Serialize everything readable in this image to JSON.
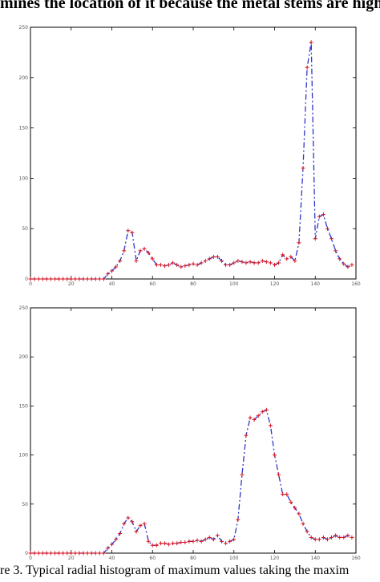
{
  "header": {
    "text": "mines the location of it because the metal stems are highly"
  },
  "caption": {
    "text": "re 3.   Typical radial histogram of maximum values taking the maxim"
  },
  "colors": {
    "dashed": "#2e36c9",
    "markers": "#d8151f",
    "axes": "#000000"
  },
  "chart_data": [
    {
      "type": "line",
      "title": "",
      "xlabel": "",
      "ylabel": "",
      "xlim": [
        0,
        160
      ],
      "ylim": [
        0,
        250
      ],
      "x_ticks": [
        "0",
        "20",
        "40",
        "60",
        "80",
        "100",
        "120",
        "140",
        "160"
      ],
      "y_ticks": [
        "0",
        "50",
        "100",
        "150",
        "200",
        "250"
      ],
      "x_tick_values": [
        0,
        20,
        40,
        60,
        80,
        100,
        120,
        140,
        160
      ],
      "y_tick_values": [
        0,
        50,
        100,
        150,
        200,
        250
      ],
      "grid": false,
      "series": [
        {
          "style": "blue-dash-dot line with red plus markers",
          "x": [
            0,
            2,
            4,
            6,
            8,
            10,
            12,
            14,
            16,
            18,
            20,
            22,
            24,
            26,
            28,
            30,
            32,
            34,
            36,
            38,
            40,
            42,
            44,
            46,
            48,
            50,
            52,
            54,
            56,
            58,
            60,
            62,
            64,
            66,
            68,
            70,
            72,
            74,
            76,
            78,
            80,
            82,
            84,
            86,
            88,
            90,
            92,
            94,
            96,
            98,
            100,
            102,
            104,
            106,
            108,
            110,
            112,
            114,
            116,
            118,
            120,
            122,
            124,
            126,
            128,
            130,
            132,
            134,
            136,
            138,
            140,
            142,
            144,
            146,
            148,
            150,
            152,
            154,
            156,
            158
          ],
          "y": [
            0,
            0,
            0,
            0,
            0,
            0,
            0,
            0,
            0,
            0,
            0,
            0,
            0,
            0,
            0,
            0,
            0,
            0,
            0,
            5,
            8,
            12,
            18,
            28,
            48,
            46,
            18,
            28,
            30,
            26,
            20,
            14,
            14,
            13,
            14,
            16,
            14,
            12,
            13,
            14,
            15,
            14,
            16,
            18,
            20,
            22,
            22,
            18,
            14,
            14,
            16,
            18,
            17,
            16,
            17,
            16,
            16,
            18,
            17,
            16,
            14,
            16,
            24,
            20,
            22,
            18,
            36,
            110,
            210,
            235,
            40,
            62,
            64,
            50,
            40,
            28,
            20,
            15,
            12,
            14
          ]
        }
      ]
    },
    {
      "type": "line",
      "title": "",
      "xlabel": "",
      "ylabel": "",
      "xlim": [
        0,
        160
      ],
      "ylim": [
        0,
        250
      ],
      "x_ticks": [
        "0",
        "20",
        "40",
        "60",
        "80",
        "100",
        "120",
        "140",
        "160"
      ],
      "y_ticks": [
        "0",
        "50",
        "100",
        "150",
        "200",
        "250"
      ],
      "x_tick_values": [
        0,
        20,
        40,
        60,
        80,
        100,
        120,
        140,
        160
      ],
      "y_tick_values": [
        0,
        50,
        100,
        150,
        200,
        250
      ],
      "grid": false,
      "series": [
        {
          "style": "blue-dash-dot line with red plus markers",
          "x": [
            0,
            2,
            4,
            6,
            8,
            10,
            12,
            14,
            16,
            18,
            20,
            22,
            24,
            26,
            28,
            30,
            32,
            34,
            36,
            38,
            40,
            42,
            44,
            46,
            48,
            50,
            52,
            54,
            56,
            58,
            60,
            62,
            64,
            66,
            68,
            70,
            72,
            74,
            76,
            78,
            80,
            82,
            84,
            86,
            88,
            90,
            92,
            94,
            96,
            98,
            100,
            102,
            104,
            106,
            108,
            110,
            112,
            114,
            116,
            118,
            120,
            122,
            124,
            126,
            128,
            130,
            132,
            134,
            136,
            138,
            140,
            142,
            144,
            146,
            148,
            150,
            152,
            154,
            156,
            158
          ],
          "y": [
            0,
            0,
            0,
            0,
            0,
            0,
            0,
            0,
            0,
            0,
            0,
            0,
            0,
            0,
            0,
            0,
            0,
            0,
            0,
            5,
            9,
            14,
            20,
            30,
            36,
            32,
            22,
            28,
            30,
            12,
            8,
            8,
            10,
            10,
            9,
            10,
            10,
            11,
            11,
            12,
            12,
            13,
            12,
            14,
            16,
            14,
            18,
            12,
            10,
            12,
            14,
            34,
            80,
            120,
            138,
            136,
            140,
            144,
            146,
            130,
            100,
            80,
            60,
            60,
            52,
            46,
            40,
            30,
            22,
            16,
            14,
            14,
            16,
            14,
            16,
            18,
            16,
            16,
            18,
            16
          ]
        }
      ]
    }
  ]
}
